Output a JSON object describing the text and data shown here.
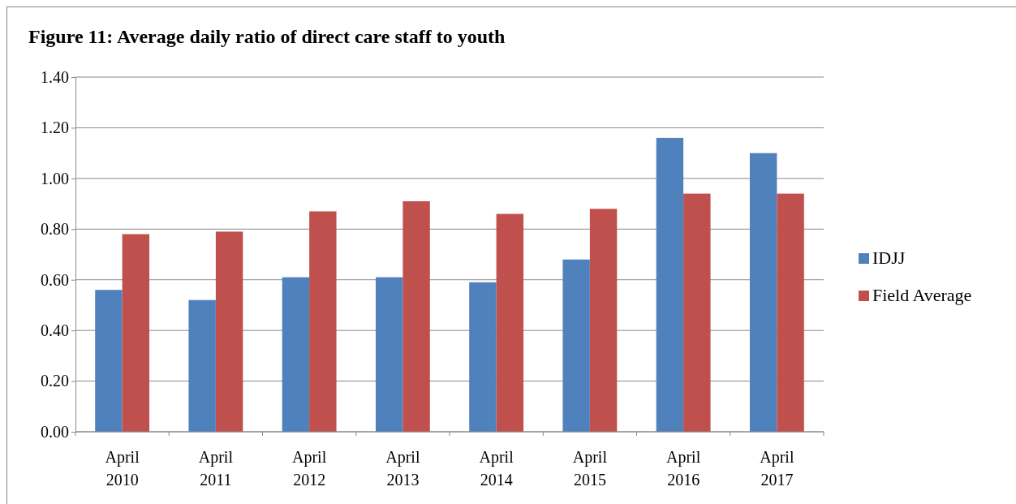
{
  "chart_data": {
    "type": "bar",
    "title": "Figure 11: Average daily ratio of direct care staff to youth",
    "categories": [
      "April 2010",
      "April 2011",
      "April 2012",
      "April 2013",
      "April 2014",
      "April 2015",
      "April 2016",
      "April 2017"
    ],
    "series": [
      {
        "name": "IDJJ",
        "color": "#4f81bd",
        "values": [
          0.56,
          0.52,
          0.61,
          0.61,
          0.59,
          0.68,
          1.16,
          1.1
        ]
      },
      {
        "name": "Field Average",
        "color": "#c0504d",
        "values": [
          0.78,
          0.79,
          0.87,
          0.91,
          0.86,
          0.88,
          0.94,
          0.94
        ]
      }
    ],
    "ylim": [
      0,
      1.4
    ],
    "yticks": [
      {
        "value": 0,
        "label": "0.00"
      },
      {
        "value": 0.2,
        "label": "0.20"
      },
      {
        "value": 0.4,
        "label": "0.40"
      },
      {
        "value": 0.6,
        "label": "0.60"
      },
      {
        "value": 0.8,
        "label": "0.80"
      },
      {
        "value": 1.0,
        "label": "1.00"
      },
      {
        "value": 1.2,
        "label": "1.20"
      },
      {
        "value": 1.4,
        "label": "1.40"
      }
    ],
    "grid": "y",
    "legend": "right"
  }
}
